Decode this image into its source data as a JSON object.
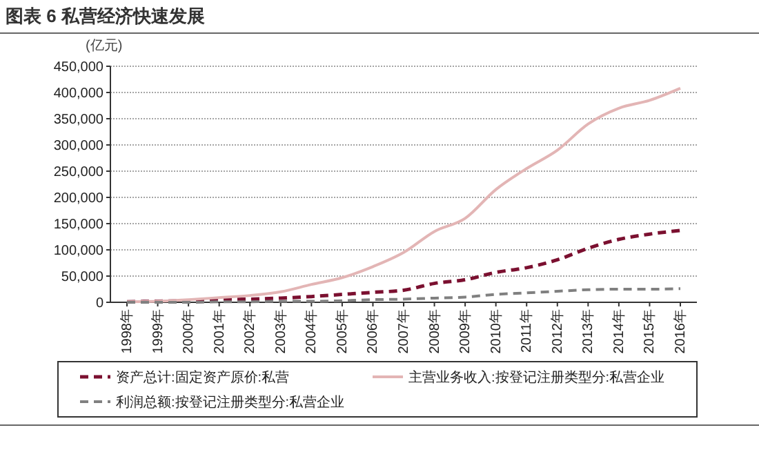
{
  "chart_data": {
    "type": "line",
    "title": "图表 6 私营经济快速发展",
    "ylabel": "(亿元)",
    "categories": [
      "1998年",
      "1999年",
      "2000年",
      "2001年",
      "2002年",
      "2003年",
      "2004年",
      "2005年",
      "2006年",
      "2007年",
      "2008年",
      "2009年",
      "2010年",
      "2011年",
      "2012年",
      "2013年",
      "2014年",
      "2015年",
      "2016年"
    ],
    "series": [
      {
        "name": "资产总计:固定资产原价:私营",
        "color": "#7b1030",
        "line_style": "dashed",
        "values": [
          1000,
          2000,
          3000,
          5000,
          6000,
          8000,
          11000,
          15000,
          19000,
          23000,
          36000,
          43000,
          57000,
          66000,
          81000,
          103000,
          120000,
          130000,
          137000
        ]
      },
      {
        "name": "主营业务收入:按登记注册类型分:私营企业",
        "color": "#e3b5b5",
        "line_style": "solid",
        "values": [
          1000,
          2000,
          5000,
          9000,
          13000,
          20000,
          34000,
          47000,
          68000,
          95000,
          135000,
          160000,
          215000,
          255000,
          290000,
          340000,
          370000,
          385000,
          408000
        ]
      },
      {
        "name": "利润总额:按登记注册类型分:私营企业",
        "color": "#808080",
        "line_style": "dashed",
        "values": [
          0,
          0,
          0,
          1000,
          1000,
          2000,
          2000,
          3000,
          5000,
          6000,
          8000,
          10000,
          15000,
          18000,
          21000,
          24000,
          25000,
          25000,
          26000
        ]
      }
    ],
    "ylim": [
      0,
      450000
    ],
    "yticks": [
      {
        "value": 0,
        "label": "0"
      },
      {
        "value": 50000,
        "label": "50,000"
      },
      {
        "value": 100000,
        "label": "100,000"
      },
      {
        "value": 150000,
        "label": "150,000"
      },
      {
        "value": 200000,
        "label": "200,000"
      },
      {
        "value": 250000,
        "label": "250,000"
      },
      {
        "value": 300000,
        "label": "300,000"
      },
      {
        "value": 350000,
        "label": "350,000"
      },
      {
        "value": 400000,
        "label": "400,000"
      },
      {
        "value": 450000,
        "label": "450,000"
      }
    ],
    "grid": "y",
    "legend": "bottom"
  }
}
